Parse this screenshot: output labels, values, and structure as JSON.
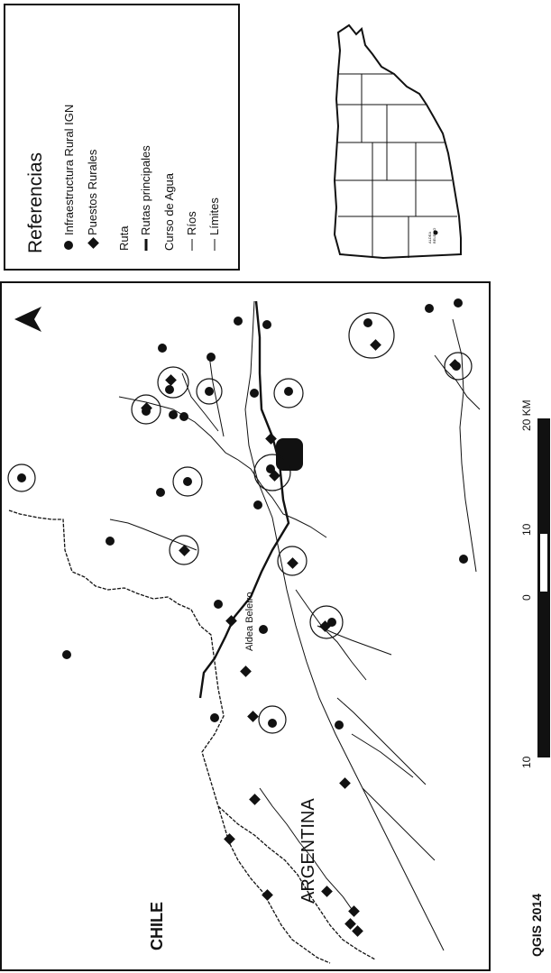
{
  "legend": {
    "title": "Referencias",
    "items": [
      {
        "label": "Infraestructura Rural IGN",
        "symbol": "circle"
      },
      {
        "label": "Puestos Rurales",
        "symbol": "diamond"
      },
      {
        "label": "Ruta",
        "symbol": "none"
      },
      {
        "label": "Rutas principales",
        "symbol": "thick-line"
      },
      {
        "label": "Curso de Agua",
        "symbol": "none"
      },
      {
        "label": "Ríos",
        "symbol": "thin-line"
      },
      {
        "label": "Límites",
        "symbol": "thin-line"
      }
    ]
  },
  "locator": {
    "label_lines": [
      "ALDEA",
      "BELEIRO"
    ]
  },
  "map": {
    "labels": {
      "chile": "CHILE",
      "argentina": "ARGENTINA",
      "town": "Aldea Beleiro"
    },
    "north_arrow": "north-arrow-icon"
  },
  "scale": {
    "ticks": [
      "10",
      "0",
      "10",
      "20 KM"
    ]
  },
  "credit": "QGIS 2014",
  "colors": {
    "ink": "#111111",
    "background": "#ffffff"
  }
}
